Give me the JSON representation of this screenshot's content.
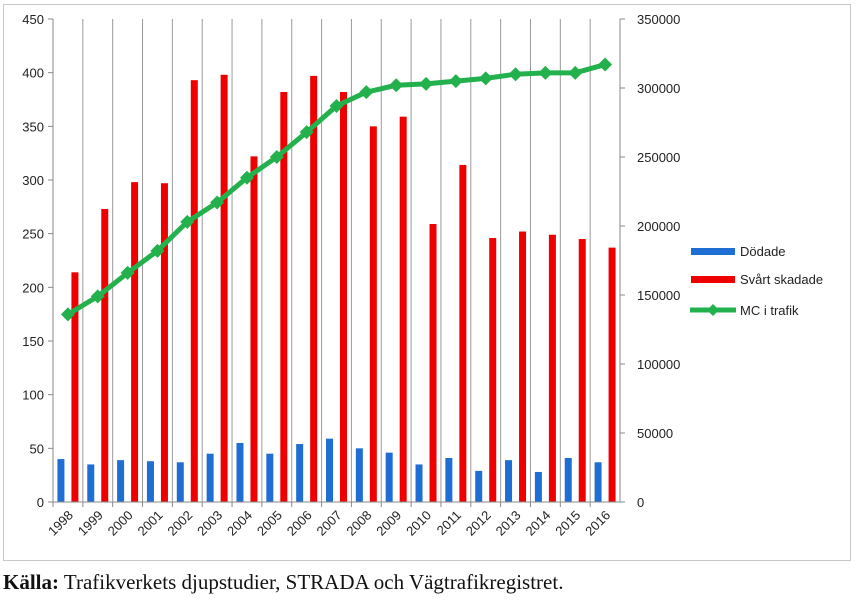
{
  "chart_data": {
    "type": "bar",
    "categories": [
      "1998",
      "1999",
      "2000",
      "2001",
      "2002",
      "2003",
      "2004",
      "2005",
      "2006",
      "2007",
      "2008",
      "2009",
      "2010",
      "2011",
      "2012",
      "2013",
      "2014",
      "2015",
      "2016"
    ],
    "series": [
      {
        "name": "Dödade",
        "kind": "bar",
        "axis": "left",
        "color": "#1f6ed4",
        "values": [
          40,
          35,
          39,
          38,
          37,
          45,
          55,
          45,
          54,
          59,
          50,
          46,
          35,
          41,
          29,
          39,
          28,
          41,
          37
        ]
      },
      {
        "name": "Svårt skadade",
        "kind": "bar",
        "axis": "left",
        "color": "#ee0000",
        "values": [
          214,
          273,
          298,
          297,
          393,
          398,
          322,
          382,
          397,
          382,
          350,
          359,
          259,
          314,
          246,
          252,
          249,
          245,
          237
        ]
      },
      {
        "name": "MC i trafik",
        "kind": "line",
        "axis": "right",
        "color": "#22b14c",
        "values": [
          136000,
          149000,
          166000,
          182000,
          203000,
          217000,
          235000,
          250000,
          268000,
          287000,
          297000,
          302000,
          303000,
          305000,
          307000,
          310000,
          311000,
          311000,
          317000
        ]
      }
    ],
    "y_left": {
      "min": 0,
      "max": 450,
      "ticks": [
        "0",
        "50",
        "100",
        "150",
        "200",
        "250",
        "300",
        "350",
        "400",
        "450"
      ]
    },
    "y_right": {
      "min": 0,
      "max": 350000,
      "ticks": [
        "0",
        "50000",
        "100000",
        "150000",
        "200000",
        "250000",
        "300000",
        "350000"
      ]
    },
    "grid": "vertical",
    "legend_position": "right"
  },
  "caption": {
    "label": "Källa:",
    "text": " Trafikverkets djupstudier, STRADA och Vägtrafikregistret."
  }
}
